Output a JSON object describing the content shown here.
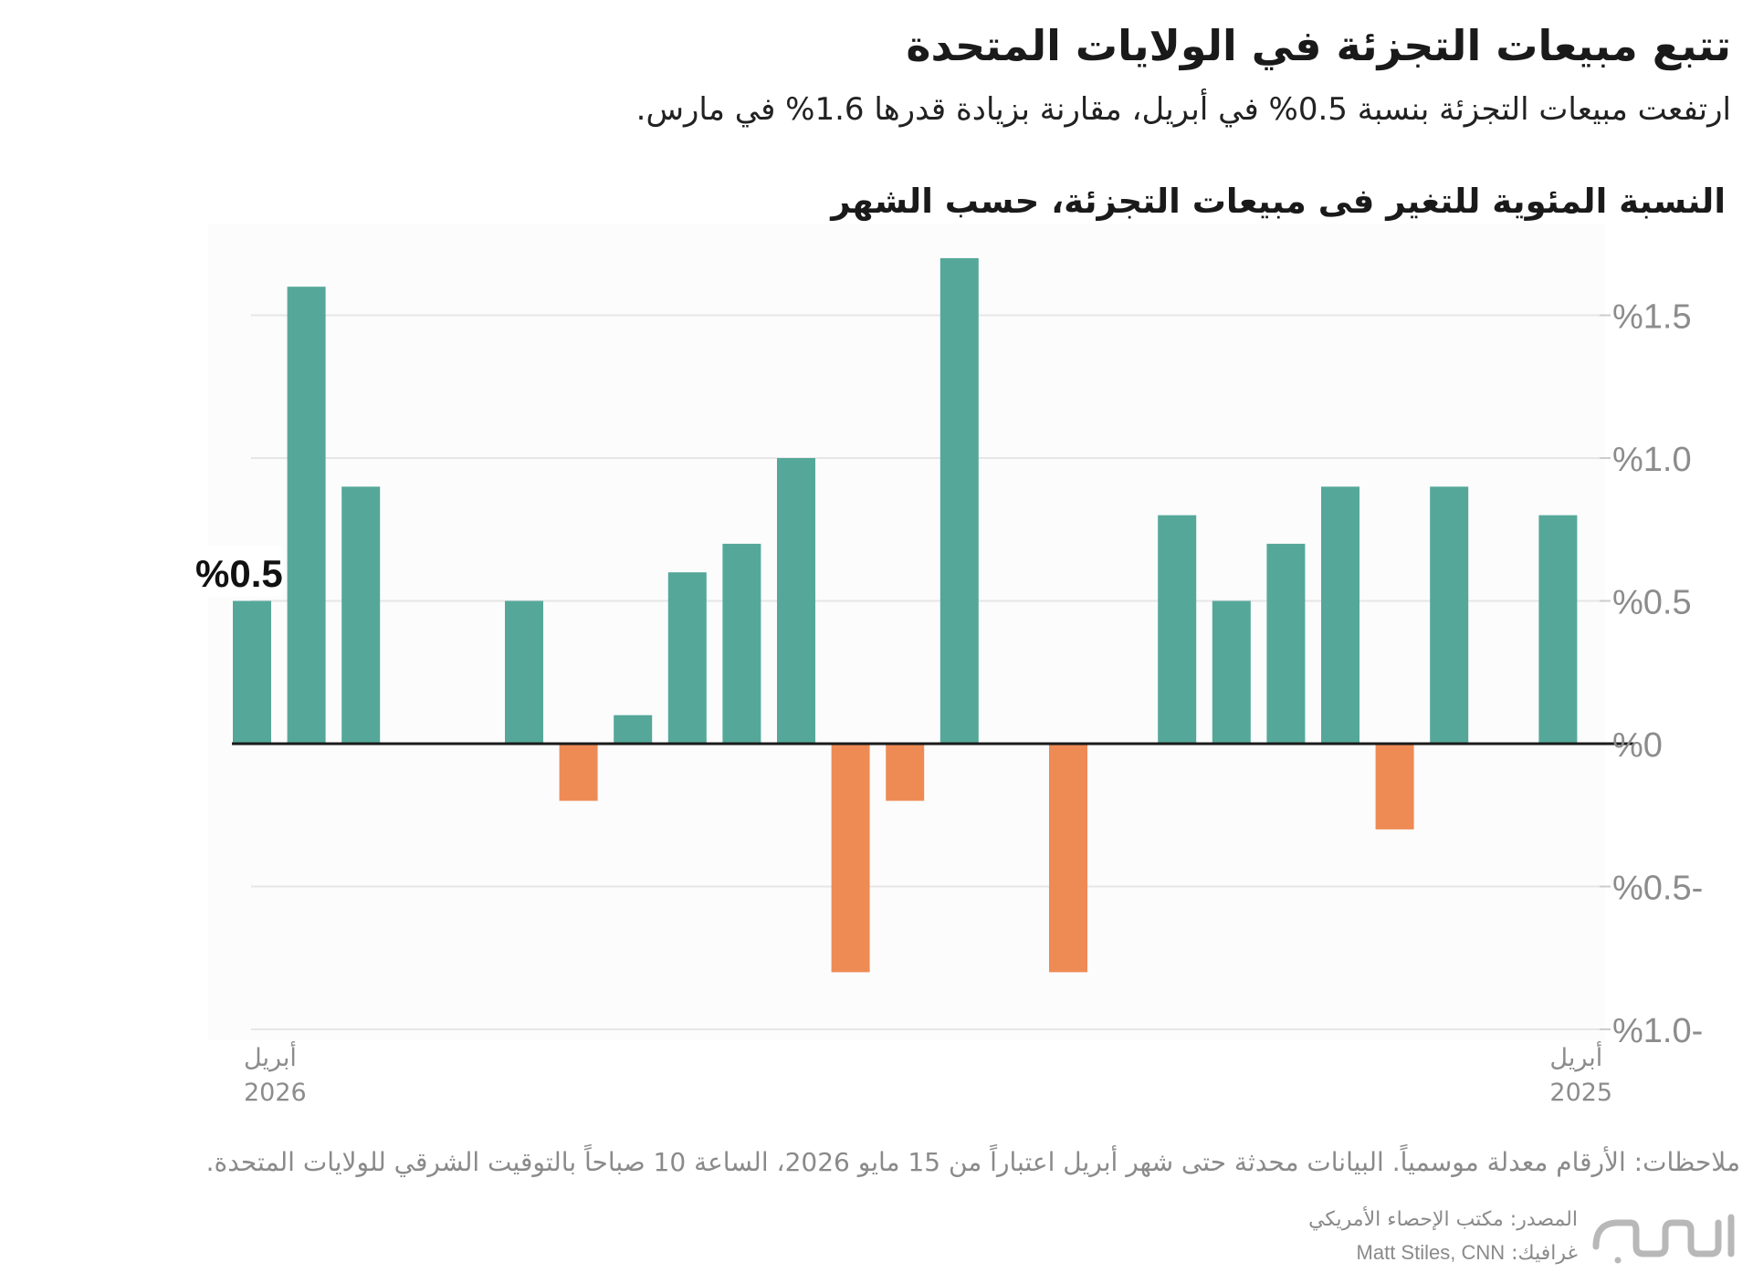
{
  "header": {
    "title": "تتبع مبيعات التجزئة في الولايات المتحدة",
    "subtitle": "ارتفعت مبيعات التجزئة بنسبة 0.5% في أبريل، مقارنة بزيادة قدرها 1.6% في مارس."
  },
  "chart_heading": "النسبة المئوية للتغير فى مبيعات التجزئة، حسب الشهر",
  "chart_data": {
    "type": "bar",
    "title": "النسبة المئوية للتغير فى مبيعات التجزئة، حسب الشهر",
    "direction": "right-to-left",
    "unit": "%",
    "ylim": [
      -1.0,
      1.7
    ],
    "yticks": [
      1.5,
      1.0,
      0.5,
      0,
      -0.5,
      -1.0
    ],
    "ytick_labels": [
      "%1.5",
      "%1.0",
      "%0.5",
      "%0",
      "%0.5-",
      "%1.0-"
    ],
    "grid": true,
    "x_labels": [
      {
        "index": 24,
        "line1": "أبريل",
        "line2": "2026"
      },
      {
        "index": 0,
        "line1": "أبريل",
        "line2": "2025"
      }
    ],
    "values": [
      0.8,
      null,
      0.9,
      -0.3,
      0.9,
      0.7,
      0.5,
      0.8,
      null,
      -0.8,
      null,
      1.7,
      -0.2,
      -0.8,
      1.0,
      0.7,
      0.6,
      0.1,
      -0.2,
      0.5,
      null,
      null,
      0.9,
      1.6,
      0.5
    ],
    "colors": {
      "positive": "#55a899",
      "negative": "#ee8b55"
    },
    "callout": {
      "index": 24,
      "label": "%0.5"
    }
  },
  "notes": "ملاحظات: الأرقام معدلة موسمياً. البيانات محدثة حتى شهر أبريل اعتباراً من 15 مايو 2026، الساعة 10 صباحاً بالتوقيت الشرقي للولايات المتحدة.",
  "source": "المصدر: مكتب الإحصاء الأمريكي",
  "credit_label": "غرافيك:",
  "credit_name": "Matt Stiles, CNN",
  "logo": {
    "icon": "cnn-arabic-logo"
  },
  "colors": {
    "accent": "#55a899",
    "negative": "#ee8b55"
  }
}
